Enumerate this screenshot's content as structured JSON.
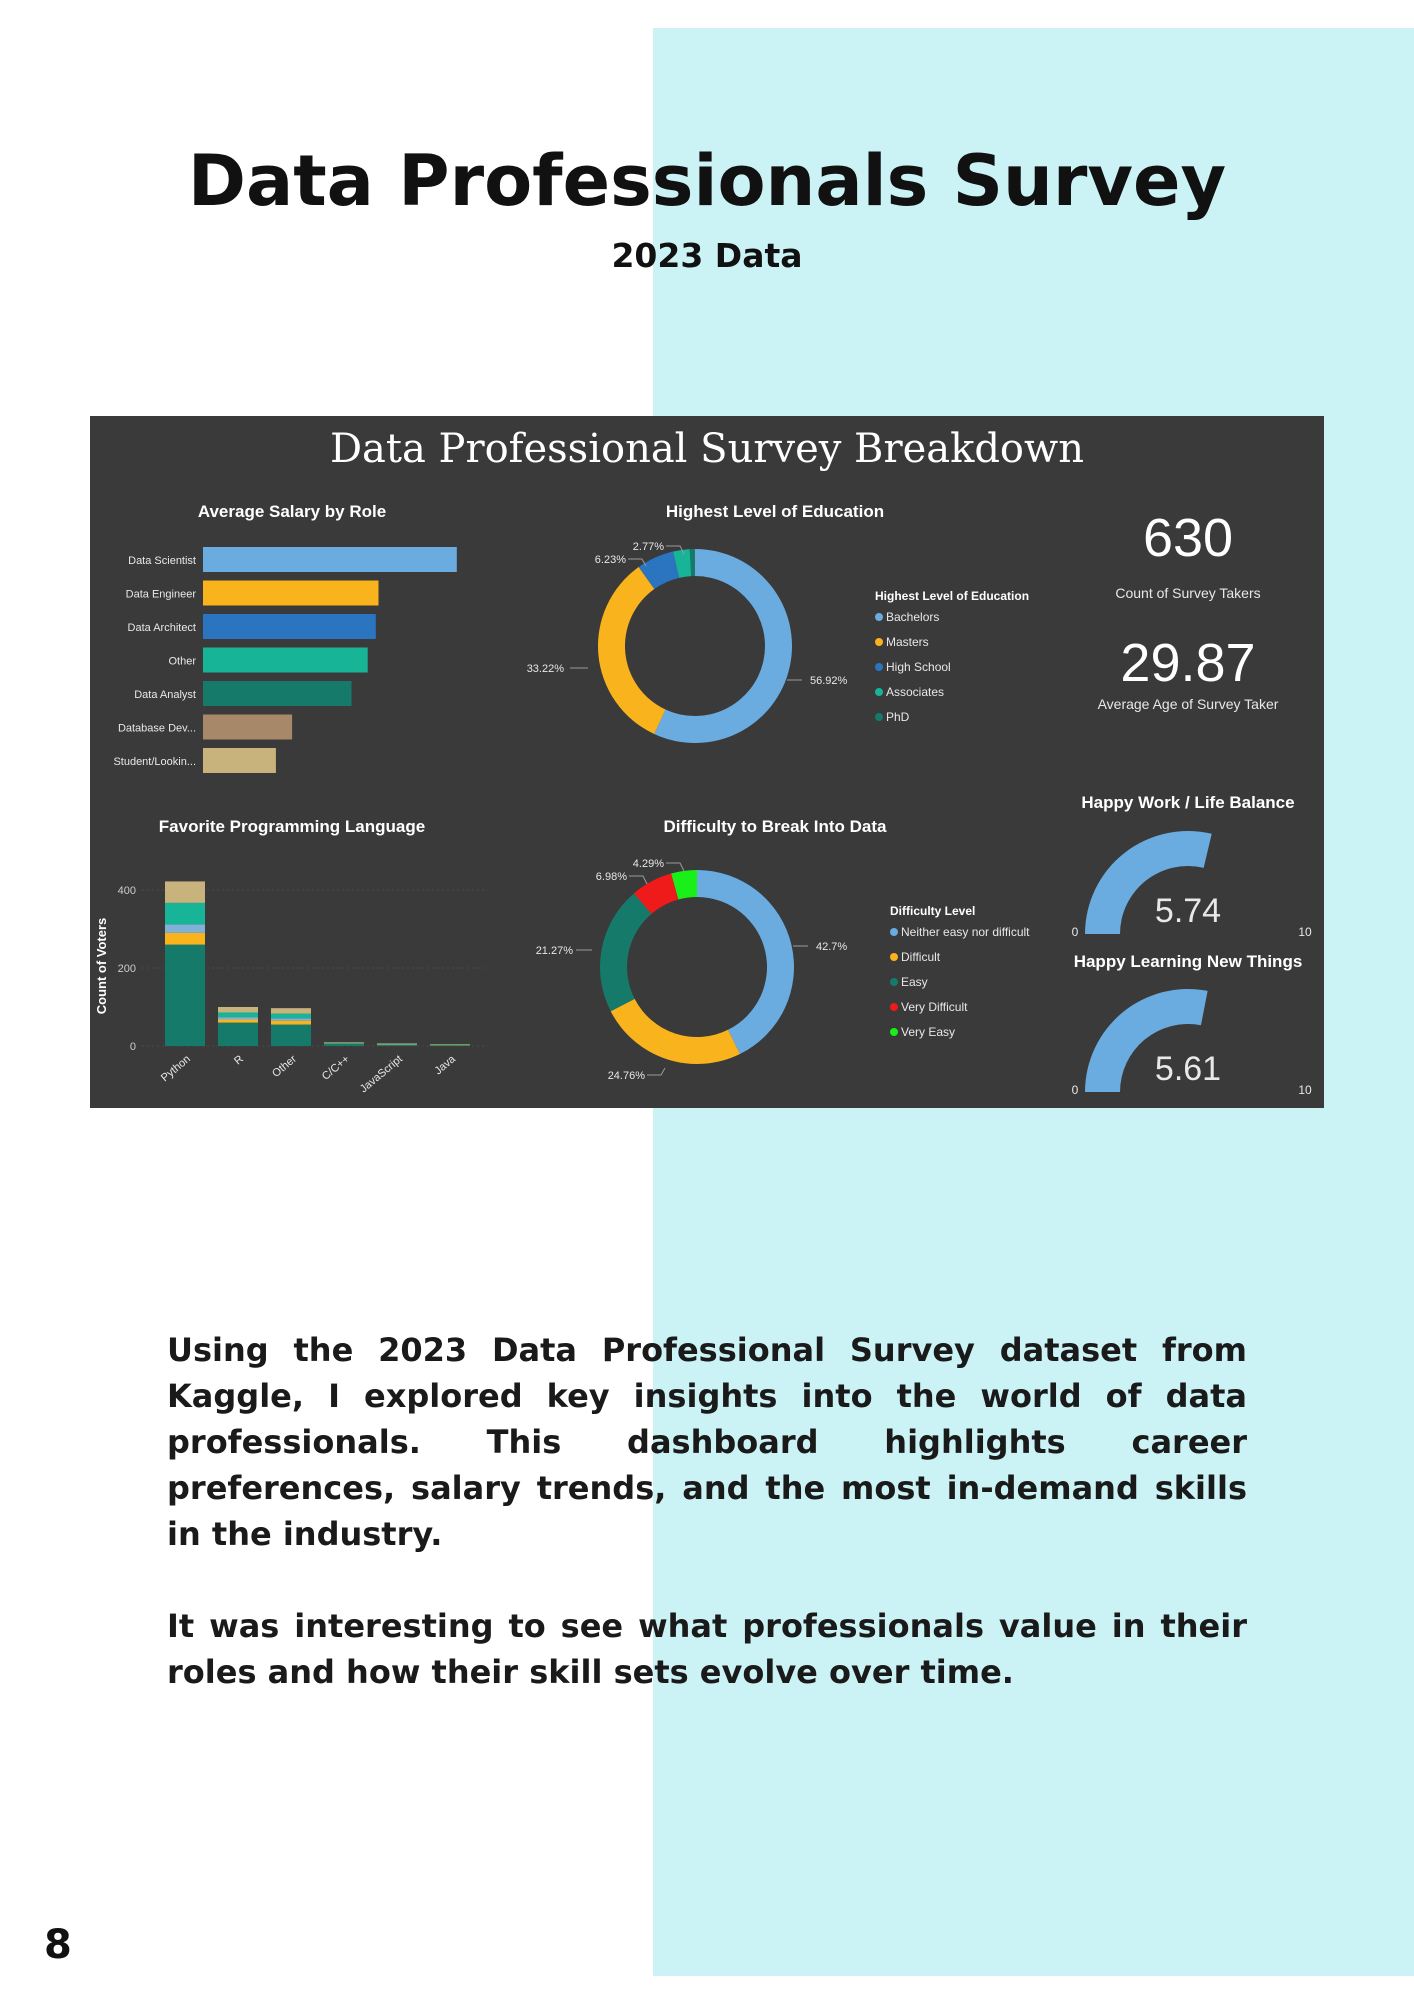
{
  "page": {
    "title": "Data Professionals Survey",
    "subtitle": "2023 Data",
    "paragraphs": [
      "Using the 2023 Data Professional Survey dataset from Kaggle, I explored key insights into the world of data professionals. This dashboard highlights career preferences, salary trends, and the most in-demand skills in the industry.",
      "It was interesting to see what professionals value in their roles and how their skill sets evolve over time."
    ],
    "page_number": "8",
    "colors": {
      "panel": "#cbf3f6",
      "dashboard_bg": "#3a3a3a"
    }
  },
  "dashboard": {
    "title": "Data Professional Survey Breakdown",
    "kpis": [
      {
        "value": "630",
        "label": "Count of Survey Takers"
      },
      {
        "value": "29.87",
        "label": "Average Age of Survey Taker"
      }
    ]
  },
  "chart_data": [
    {
      "type": "bar",
      "orientation": "horizontal",
      "title": "Average Salary by Role",
      "categories": [
        "Data Scientist",
        "Data Engineer",
        "Data Architect",
        "Other",
        "Data Analyst",
        "Database Dev...",
        "Student/Lookin..."
      ],
      "values": [
        94,
        65,
        64,
        61,
        55,
        33,
        27
      ],
      "colors": [
        "#6aace0",
        "#f9b31c",
        "#2a74c0",
        "#17b497",
        "#157a6a",
        "#a7896a",
        "#c8b37c"
      ]
    },
    {
      "type": "pie",
      "title": "Highest Level of Education",
      "legend_title": "Highest Level of Education",
      "categories": [
        "Bachelors",
        "Masters",
        "High School",
        "Associates",
        "PhD"
      ],
      "values": [
        56.92,
        33.22,
        6.23,
        2.77,
        0.86
      ],
      "labels": [
        "56.92%",
        "33.22%",
        "6.23%",
        "2.77%",
        ""
      ],
      "colors": [
        "#6aace0",
        "#f9b31c",
        "#2a74c0",
        "#17b497",
        "#157a6a"
      ],
      "legend": "right"
    },
    {
      "type": "bar",
      "stacked": true,
      "title": "Favorite Programming Language",
      "ylabel": "Count of Voters",
      "categories": [
        "Python",
        "R",
        "Other",
        "C/C++",
        "JavaScript",
        "Java"
      ],
      "yticks": [
        0,
        200,
        400
      ],
      "ylim": [
        0,
        450
      ],
      "series": [
        {
          "values": [
            260,
            60,
            55,
            6,
            3,
            2
          ],
          "color": "#157a6a"
        },
        {
          "values": [
            30,
            8,
            10,
            1,
            1,
            1
          ],
          "color": "#f9b31c"
        },
        {
          "values": [
            22,
            6,
            6,
            1,
            1,
            0
          ],
          "color": "#7fb2d6"
        },
        {
          "values": [
            55,
            12,
            12,
            1,
            1,
            1
          ],
          "color": "#17b497"
        },
        {
          "values": [
            55,
            14,
            14,
            1,
            1,
            1
          ],
          "color": "#c8b37c"
        }
      ]
    },
    {
      "type": "pie",
      "title": "Difficulty to Break Into Data",
      "legend_title": "Difficulty Level",
      "categories": [
        "Neither easy nor difficult",
        "Difficult",
        "Easy",
        "Very Difficult",
        "Very Easy"
      ],
      "values": [
        42.7,
        24.76,
        21.27,
        6.98,
        4.29
      ],
      "labels": [
        "42.7%",
        "24.76%",
        "21.27%",
        "6.98%",
        "4.29%"
      ],
      "colors": [
        "#6aace0",
        "#f9b31c",
        "#157a6a",
        "#ef1a1a",
        "#19f019"
      ],
      "legend": "right"
    },
    {
      "type": "gauge",
      "title": "Happy Work / Life Balance",
      "value": 5.74,
      "min": 0,
      "max": 10,
      "value_label": "5.74",
      "min_label": "0",
      "max_label": "10",
      "color": "#6aace0"
    },
    {
      "type": "gauge",
      "title": "Happy Learning New Things",
      "value": 5.61,
      "min": 0,
      "max": 10,
      "value_label": "5.61",
      "min_label": "0",
      "max_label": "10",
      "color": "#6aace0"
    }
  ]
}
